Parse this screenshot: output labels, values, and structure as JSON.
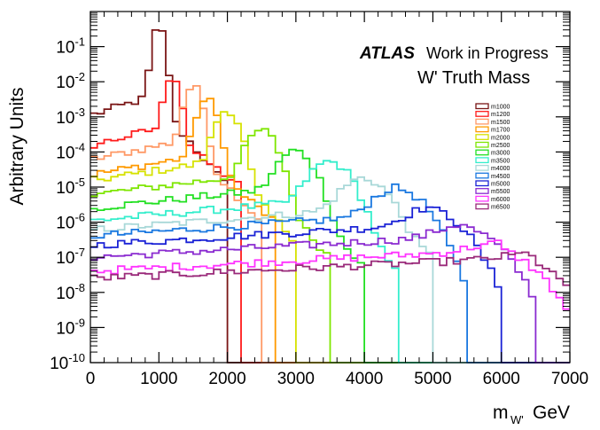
{
  "chart_data": {
    "type": "line",
    "title": "",
    "experiment_label": "ATLAS",
    "status_label": "Work in Progress",
    "subtitle": "W' Truth Mass",
    "xlabel": "m",
    "xlabel_subscript": "W'",
    "xlabel_unit": "GeV",
    "ylabel": "Arbitrary Units",
    "xlim": [
      0,
      7000
    ],
    "ylim": [
      1e-10,
      1
    ],
    "yscale": "log",
    "grid": false,
    "legend_position": "right",
    "x_ticks": [
      0,
      1000,
      2000,
      3000,
      4000,
      5000,
      6000,
      7000
    ],
    "x_tick_labels": [
      "0",
      "1000",
      "2000",
      "3000",
      "4000",
      "5000",
      "6000",
      "7000"
    ],
    "y_ticks": [
      1e-10,
      1e-09,
      1e-08,
      1e-07,
      1e-06,
      1e-05,
      0.0001,
      0.001,
      0.01,
      0.1
    ],
    "y_tick_mantissa": [
      "10",
      "10",
      "10",
      "10",
      "10",
      "10",
      "10",
      "10",
      "10",
      "10"
    ],
    "y_tick_exponents": [
      "-10",
      "-9",
      "-8",
      "-7",
      "-6",
      "-5",
      "-4",
      "-3",
      "-2",
      "-1"
    ],
    "bin_width": 100,
    "series": [
      {
        "name": "m1000",
        "mass": 1000,
        "color": "#7a1515",
        "peak": 0.35,
        "low_start": 0.0011,
        "high_end": 1e-05,
        "cutoff": 2000
      },
      {
        "name": "m1200",
        "mass": 1200,
        "color": "#ff1a1a",
        "peak": 0.015,
        "low_start": 0.00015,
        "high_end": 1e-05,
        "cutoff": 2200
      },
      {
        "name": "m1500",
        "mass": 1500,
        "color": "#ff9966",
        "peak": 0.007,
        "low_start": 6e-05,
        "high_end": 1e-06,
        "cutoff": 2500
      },
      {
        "name": "m1700",
        "mass": 1700,
        "color": "#ff9a00",
        "peak": 0.003,
        "low_start": 2.2e-05,
        "high_end": 1e-06,
        "cutoff": 2700
      },
      {
        "name": "m2000",
        "mass": 2000,
        "color": "#d6e200",
        "peak": 0.0015,
        "low_start": 1.5e-05,
        "high_end": 3e-07,
        "cutoff": 3000
      },
      {
        "name": "m2500",
        "mass": 2500,
        "color": "#7ee600",
        "peak": 0.0004,
        "low_start": 6e-06,
        "high_end": 1e-07,
        "cutoff": 3500
      },
      {
        "name": "m3000",
        "mass": 3000,
        "color": "#22e022",
        "peak": 0.0001,
        "low_start": 2.5e-06,
        "high_end": 5e-08,
        "cutoff": 4000
      },
      {
        "name": "m3500",
        "mass": 3500,
        "color": "#33eecc",
        "peak": 5e-05,
        "low_start": 1.1e-06,
        "high_end": 3e-08,
        "cutoff": 4500
      },
      {
        "name": "m4000",
        "mass": 4000,
        "color": "#a8d8d8",
        "peak": 1.6e-05,
        "low_start": 6e-07,
        "high_end": 1e-07,
        "cutoff": 5000
      },
      {
        "name": "m4500",
        "mass": 4500,
        "color": "#1a78e0",
        "peak": 8e-06,
        "low_start": 4e-07,
        "high_end": 5e-09,
        "cutoff": 5500
      },
      {
        "name": "m5000",
        "mass": 5000,
        "color": "#1a22d6",
        "peak": 1.8e-06,
        "low_start": 2.2e-07,
        "high_end": 3e-09,
        "cutoff": 6000
      },
      {
        "name": "m5500",
        "mass": 5500,
        "color": "#8a2ad0",
        "peak": 5e-07,
        "low_start": 1e-07,
        "high_end": 1e-09,
        "cutoff": 6500
      },
      {
        "name": "m6000",
        "mass": 6000,
        "color": "#ff33ff",
        "peak": 1e-07,
        "low_start": 4e-08,
        "high_end": 3e-10,
        "cutoff": 7000
      },
      {
        "name": "m6500",
        "mass": 6500,
        "color": "#9a2a7a",
        "peak": 3e-08,
        "low_start": 2.5e-08,
        "high_end": 1e-09,
        "cutoff": 7000
      }
    ]
  }
}
